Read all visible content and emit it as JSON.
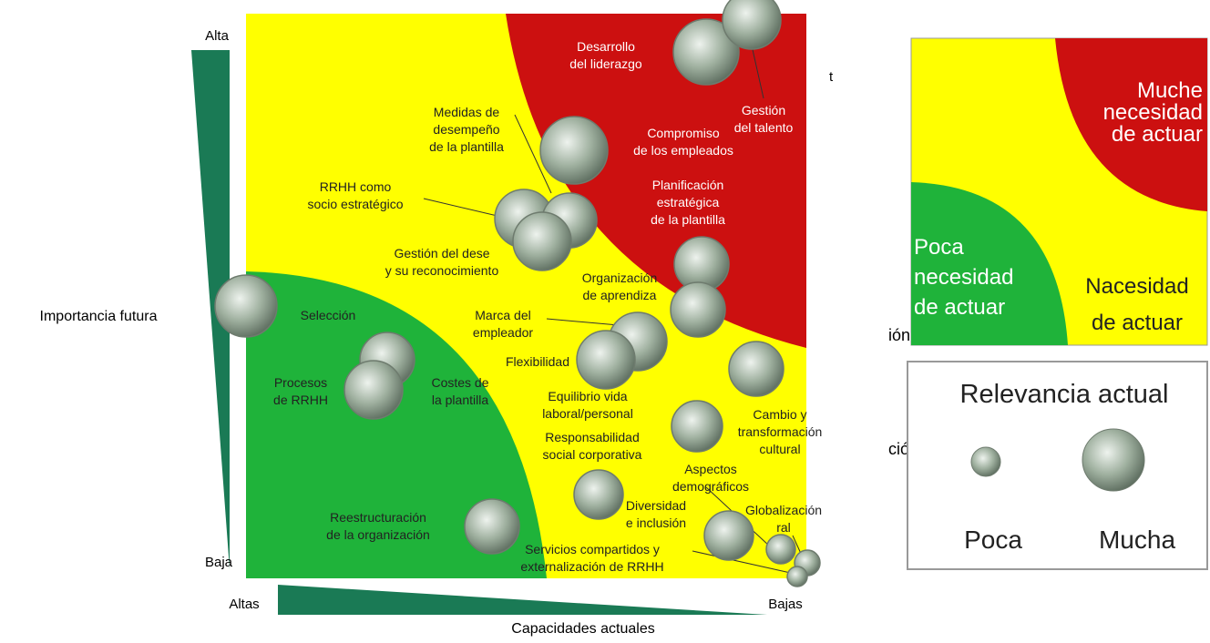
{
  "axes": {
    "y_title": "Importancia futura",
    "y_high": "Alta",
    "y_low": "Baja",
    "x_title": "Capacidades actuales",
    "x_left": "Altas",
    "x_right": "Bajas"
  },
  "labels": [
    {
      "lines": [
        "Desarrollo",
        "del liderazgo"
      ]
    },
    {
      "lines": [
        "Gestión",
        "del talento"
      ]
    },
    {
      "lines": [
        "Compromiso",
        "de los empleados"
      ]
    },
    {
      "lines": [
        "Planificación",
        "estratégica",
        "de la plantilla"
      ]
    },
    {
      "lines": [
        "Medidas de",
        "desempeño",
        "de la plantilla"
      ]
    },
    {
      "lines": [
        "RRHH como",
        "socio estratégico"
      ]
    },
    {
      "lines": [
        "Gestión del dese",
        "y su reconocimiento"
      ]
    },
    {
      "lines": [
        "Organización",
        "de aprendiza"
      ]
    },
    {
      "lines": [
        "Selección"
      ]
    },
    {
      "lines": [
        "Marca del",
        "empleador"
      ]
    },
    {
      "lines": [
        "Flexibilidad"
      ]
    },
    {
      "lines": [
        "Procesos",
        "de RRHH"
      ]
    },
    {
      "lines": [
        "Costes de",
        "la plantilla"
      ]
    },
    {
      "lines": [
        "Equilibrio vida",
        "laboral/personal"
      ]
    },
    {
      "lines": [
        "Responsabilidad",
        "social corporativa"
      ]
    },
    {
      "lines": [
        "Cambio y",
        "transformación",
        "cultural"
      ]
    },
    {
      "lines": [
        "Aspectos",
        "demográficos"
      ]
    },
    {
      "lines": [
        "Diversidad",
        "e inclusión"
      ]
    },
    {
      "lines": [
        "Globalización",
        "ral"
      ]
    },
    {
      "lines": [
        "Reestructuración",
        "de la organización"
      ]
    },
    {
      "lines": [
        "Servicios compartidos y",
        "externalización de RRHH"
      ]
    }
  ],
  "fragments": [
    "t",
    "ión",
    "ción"
  ],
  "quadrant_legend": {
    "high": [
      "Muche",
      "necesidad",
      "de actuar"
    ],
    "low": [
      "Poca",
      "necesidad",
      "de actuar"
    ],
    "mid": [
      "Nacesidad",
      "de actuar"
    ]
  },
  "size_legend": {
    "title": "Relevancia actual",
    "small": "Poca",
    "large": "Mucha"
  }
}
